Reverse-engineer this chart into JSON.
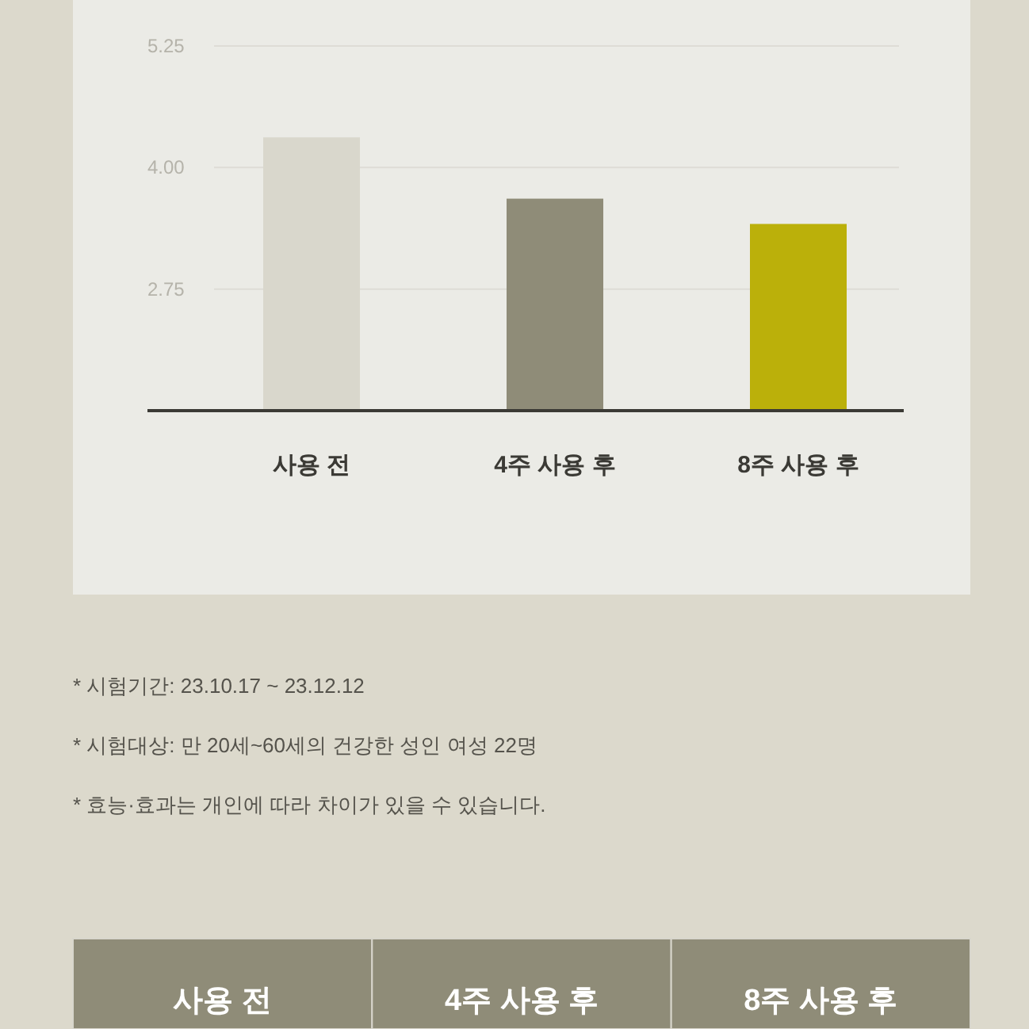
{
  "chart_data": {
    "type": "bar",
    "categories": [
      "사용 전",
      "4주 사용 후",
      "8주 사용 후"
    ],
    "values": [
      4.31,
      3.68,
      3.42
    ],
    "colors": [
      "#d9d7cc",
      "#8f8c78",
      "#bbb00a"
    ],
    "ylim": [
      1.5,
      5.25
    ],
    "yticks": [
      2.75,
      {
        "value": 4,
        "label": "4.00"
      },
      5.25
    ],
    "grid": "y",
    "annotations": [
      "* 시험기간: 23.10.17 ~ 23.12.12",
      "* 시험대상: 만 20세~60세의 건강한 성인 여성 22명",
      "* 효능·효과는 개인에 따라 차이가 있을 수 있습니다.",
      "사용 전",
      "4주 사용 후",
      "8주 사용 후"
    ]
  }
}
